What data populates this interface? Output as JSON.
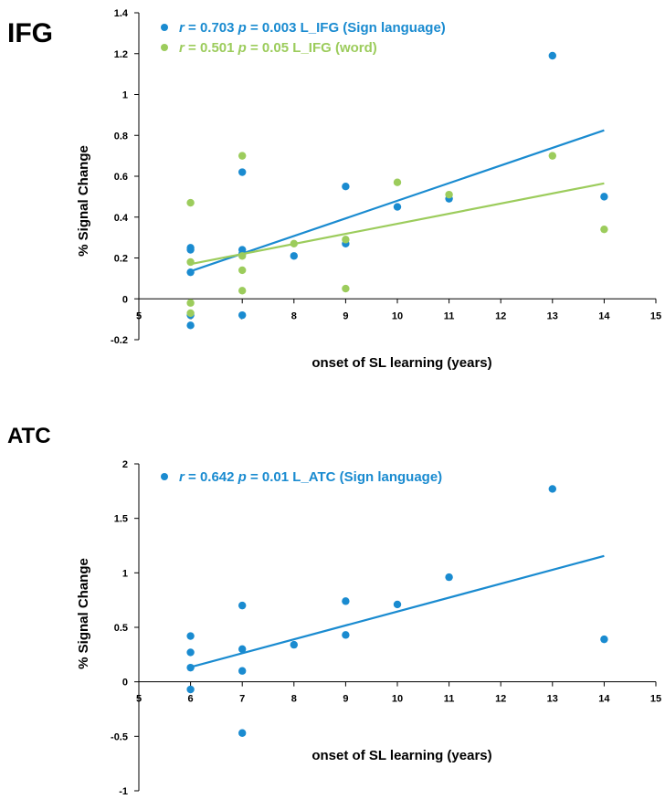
{
  "colors": {
    "blue": "#1a8bd0",
    "green": "#9ccc5c",
    "axis": "#000000"
  },
  "chart_data": [
    {
      "type": "scatter",
      "panel_title": "IFG",
      "xlabel": "onset of SL learning (years)",
      "ylabel": "% Signal Change",
      "xlim": [
        5,
        15
      ],
      "ylim": [
        -0.2,
        1.4
      ],
      "xticks": [
        "5",
        "6",
        "7",
        "8",
        "9",
        "10",
        "11",
        "12",
        "13",
        "14",
        "15"
      ],
      "yticks": [
        "-0.2",
        "0",
        "0.2",
        "0.4",
        "0.6",
        "0.8",
        "1",
        "1.2",
        "1.4"
      ],
      "grid": false,
      "legend_position": "top-left",
      "series": [
        {
          "name": "L_IFG (Sign language)",
          "legend": {
            "r": "0.703",
            "p": "0.003",
            "label": "L_IFG (Sign language)"
          },
          "color": "#1a8bd0",
          "points": [
            [
              6,
              0.25
            ],
            [
              6,
              0.24
            ],
            [
              6,
              0.13
            ],
            [
              6,
              -0.08
            ],
            [
              6,
              -0.13
            ],
            [
              7,
              0.62
            ],
            [
              7,
              0.24
            ],
            [
              7,
              0.22
            ],
            [
              7,
              -0.08
            ],
            [
              8,
              0.21
            ],
            [
              9,
              0.55
            ],
            [
              9,
              0.27
            ],
            [
              10,
              0.45
            ],
            [
              11,
              0.49
            ],
            [
              13,
              1.19
            ],
            [
              14,
              0.5
            ]
          ],
          "trendline": [
            [
              6,
              0.135
            ],
            [
              14,
              0.825
            ]
          ]
        },
        {
          "name": "L_IFG (word)",
          "legend": {
            "r": "0.501",
            "p": "0.05",
            "label": "L_IFG (word)"
          },
          "color": "#9ccc5c",
          "points": [
            [
              6,
              0.47
            ],
            [
              6,
              0.18
            ],
            [
              6,
              -0.02
            ],
            [
              6,
              -0.07
            ],
            [
              7,
              0.7
            ],
            [
              7,
              0.21
            ],
            [
              7,
              0.14
            ],
            [
              7,
              0.04
            ],
            [
              8,
              0.27
            ],
            [
              9,
              0.29
            ],
            [
              9,
              0.05
            ],
            [
              10,
              0.57
            ],
            [
              11,
              0.51
            ],
            [
              13,
              0.7
            ],
            [
              14,
              0.34
            ]
          ],
          "trendline": [
            [
              6,
              0.17
            ],
            [
              14,
              0.565
            ]
          ]
        }
      ]
    },
    {
      "type": "scatter",
      "panel_title": "ATC",
      "xlabel": "onset of SL learning (years)",
      "ylabel": "% Signal Change",
      "xlim": [
        5,
        15
      ],
      "ylim": [
        -1,
        2
      ],
      "xticks": [
        "5",
        "6",
        "7",
        "8",
        "9",
        "10",
        "11",
        "12",
        "13",
        "14",
        "15"
      ],
      "yticks": [
        "-1",
        "-0.5",
        "0",
        "0.5",
        "1",
        "1.5",
        "2"
      ],
      "grid": false,
      "legend_position": "top-left",
      "series": [
        {
          "name": "L_ATC (Sign language)",
          "legend": {
            "r": "0.642",
            "p": "0.01",
            "label": "L_ATC (Sign language)"
          },
          "color": "#1a8bd0",
          "points": [
            [
              6,
              0.42
            ],
            [
              6,
              0.27
            ],
            [
              6,
              0.13
            ],
            [
              6,
              -0.07
            ],
            [
              7,
              0.7
            ],
            [
              7,
              0.3
            ],
            [
              7,
              0.1
            ],
            [
              7,
              -0.47
            ],
            [
              8,
              0.34
            ],
            [
              9,
              0.74
            ],
            [
              9,
              0.43
            ],
            [
              10,
              0.71
            ],
            [
              11,
              0.96
            ],
            [
              13,
              1.77
            ],
            [
              14,
              0.39
            ]
          ],
          "trendline": [
            [
              6,
              0.135
            ],
            [
              14,
              1.155
            ]
          ]
        }
      ]
    }
  ]
}
